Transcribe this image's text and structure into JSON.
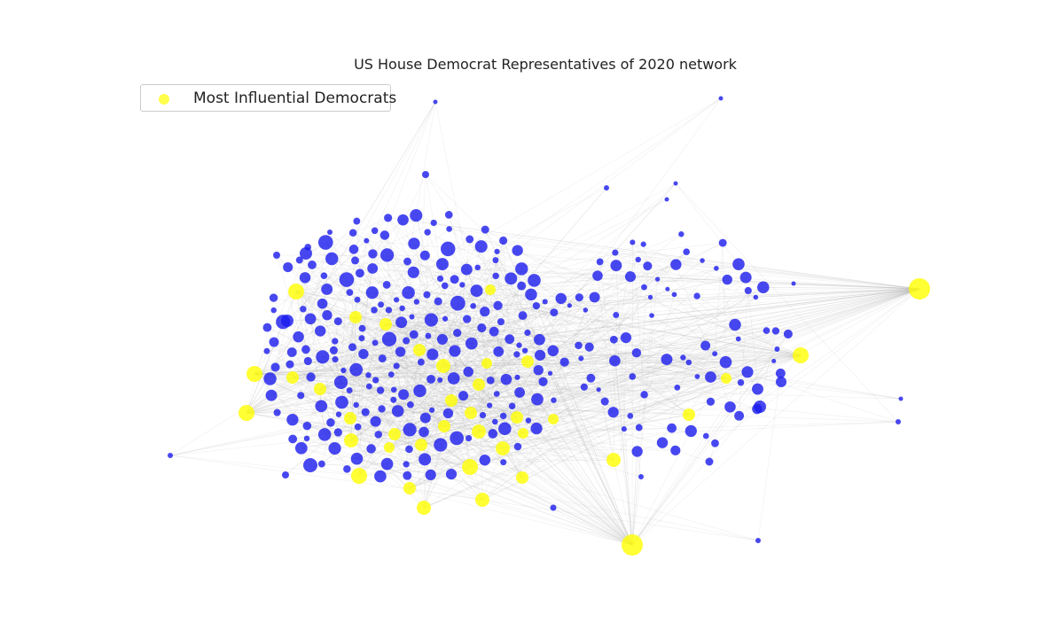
{
  "chart_data": {
    "type": "network",
    "title": "US House Democrat Representatives of 2020 network",
    "legend": {
      "placement": "top-left",
      "entries": [
        {
          "label": "Most Influential Democrats",
          "color": "#ffff00"
        }
      ]
    },
    "grid": false,
    "colors": {
      "regular_node": "#1a1aee",
      "influential_node": "#ffff00",
      "edge": "#b0b0b0"
    }
  }
}
